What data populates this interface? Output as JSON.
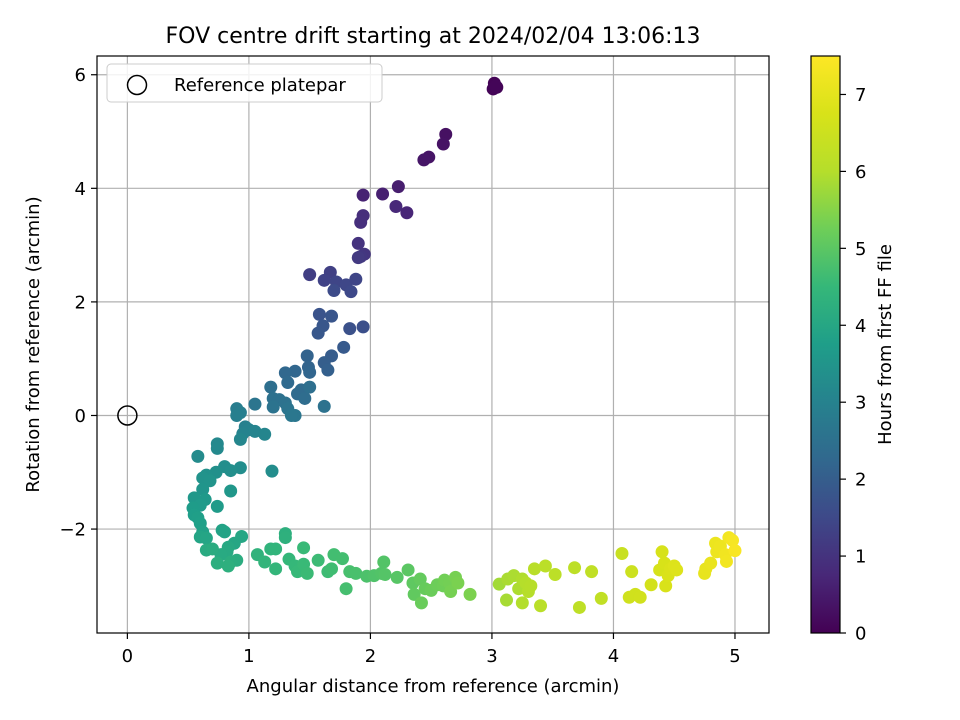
{
  "chart_data": {
    "type": "scatter",
    "title": "FOV centre drift starting at 2024/02/04 13:06:13",
    "xlabel": "Angular distance from reference (arcmin)",
    "ylabel": "Rotation from reference (arcmin)",
    "xlim": [
      -0.25,
      5.28
    ],
    "ylim": [
      -3.83,
      6.33
    ],
    "xticks": [
      0,
      1,
      2,
      3,
      4,
      5
    ],
    "yticks": [
      -2,
      0,
      2,
      4,
      6
    ],
    "ytick_labels": [
      "−2",
      "0",
      "2",
      "4",
      "6"
    ],
    "grid": true,
    "legend": {
      "position": "top-left",
      "entries": [
        "Reference platepar"
      ]
    },
    "reference_point": {
      "x": 0,
      "y": 0,
      "label": "Reference platepar"
    },
    "colorbar": {
      "label": "Hours from first FF file",
      "colormap": "viridis",
      "range": [
        0,
        7.5
      ],
      "ticks": [
        0,
        1,
        2,
        3,
        4,
        5,
        6,
        7
      ]
    },
    "series": [
      {
        "points": [
          [
            3.02,
            5.85,
            0.05
          ],
          [
            3.04,
            5.78,
            0.07
          ],
          [
            3.01,
            5.75,
            0.06
          ],
          [
            3.03,
            5.8,
            0.08
          ],
          [
            2.62,
            4.95,
            0.3
          ],
          [
            2.6,
            4.78,
            0.33
          ],
          [
            2.48,
            4.55,
            0.37
          ],
          [
            2.44,
            4.5,
            0.4
          ],
          [
            2.23,
            4.03,
            0.55
          ],
          [
            2.1,
            3.9,
            0.6
          ],
          [
            1.94,
            3.88,
            0.65
          ],
          [
            2.3,
            3.57,
            0.72
          ],
          [
            2.21,
            3.68,
            0.78
          ],
          [
            1.94,
            3.52,
            0.88
          ],
          [
            1.92,
            3.4,
            0.92
          ],
          [
            1.9,
            3.03,
            1.0
          ],
          [
            1.95,
            2.84,
            1.05
          ],
          [
            1.92,
            2.8,
            1.1
          ],
          [
            1.9,
            2.78,
            1.15
          ],
          [
            1.5,
            2.48,
            1.25
          ],
          [
            1.67,
            2.52,
            1.3
          ],
          [
            1.62,
            2.38,
            1.35
          ],
          [
            1.72,
            2.35,
            1.4
          ],
          [
            1.8,
            2.3,
            1.45
          ],
          [
            1.88,
            2.4,
            1.4
          ],
          [
            1.84,
            2.18,
            1.5
          ],
          [
            1.7,
            2.2,
            1.55
          ],
          [
            1.94,
            1.56,
            1.65
          ],
          [
            1.83,
            1.53,
            1.7
          ],
          [
            1.58,
            1.78,
            1.75
          ],
          [
            1.68,
            1.75,
            1.78
          ],
          [
            1.61,
            1.58,
            1.82
          ],
          [
            1.57,
            1.45,
            1.85
          ],
          [
            1.78,
            1.2,
            1.9
          ],
          [
            1.68,
            1.05,
            1.95
          ],
          [
            1.62,
            0.93,
            2.0
          ],
          [
            1.65,
            0.8,
            2.05
          ],
          [
            1.48,
            1.05,
            2.12
          ],
          [
            1.49,
            0.85,
            2.15
          ],
          [
            1.5,
            0.76,
            2.2
          ],
          [
            1.38,
            0.78,
            2.22
          ],
          [
            1.3,
            0.75,
            2.25
          ],
          [
            1.32,
            0.58,
            2.3
          ],
          [
            1.43,
            0.45,
            2.35
          ],
          [
            1.4,
            0.38,
            2.35
          ],
          [
            1.46,
            0.3,
            2.4
          ],
          [
            1.5,
            0.5,
            2.45
          ],
          [
            1.18,
            0.5,
            2.45
          ],
          [
            1.2,
            0.3,
            2.5
          ],
          [
            1.25,
            0.28,
            2.52
          ],
          [
            1.3,
            0.22,
            2.55
          ],
          [
            1.2,
            0.15,
            2.58
          ],
          [
            1.32,
            0.12,
            2.6
          ],
          [
            1.05,
            0.2,
            2.62
          ],
          [
            1.38,
            0.0,
            2.65
          ],
          [
            1.35,
            0.0,
            2.68
          ],
          [
            1.62,
            0.16,
            2.55
          ],
          [
            0.9,
            0.12,
            2.85
          ],
          [
            0.93,
            0.05,
            2.88
          ],
          [
            0.9,
            0.0,
            2.92
          ],
          [
            0.97,
            -0.2,
            2.95
          ],
          [
            1.0,
            -0.25,
            3.0
          ],
          [
            0.95,
            -0.32,
            3.02
          ],
          [
            1.05,
            -0.28,
            3.05
          ],
          [
            1.13,
            -0.33,
            3.08
          ],
          [
            0.93,
            -0.42,
            3.1
          ],
          [
            0.74,
            -0.5,
            3.15
          ],
          [
            0.74,
            -0.58,
            3.18
          ],
          [
            0.58,
            -0.72,
            3.25
          ],
          [
            0.93,
            -0.92,
            3.3
          ],
          [
            0.8,
            -0.9,
            3.33
          ],
          [
            0.85,
            -0.97,
            3.36
          ],
          [
            0.73,
            -1.0,
            3.38
          ],
          [
            0.65,
            -1.05,
            3.4
          ],
          [
            0.62,
            -1.1,
            3.45
          ],
          [
            0.68,
            -1.15,
            3.48
          ],
          [
            1.19,
            -0.98,
            3.3
          ],
          [
            0.62,
            -1.3,
            3.5
          ],
          [
            0.85,
            -1.33,
            3.55
          ],
          [
            0.55,
            -1.45,
            3.6
          ],
          [
            0.64,
            -1.48,
            3.62
          ],
          [
            0.6,
            -1.58,
            3.66
          ],
          [
            0.74,
            -1.6,
            3.68
          ],
          [
            0.54,
            -1.63,
            3.7
          ],
          [
            0.55,
            -1.75,
            3.74
          ],
          [
            0.58,
            -1.8,
            3.78
          ],
          [
            0.6,
            -1.9,
            3.8
          ],
          [
            0.62,
            -2.05,
            3.85
          ],
          [
            0.78,
            -2.02,
            3.88
          ],
          [
            0.8,
            -2.05,
            3.9
          ],
          [
            0.6,
            -2.14,
            3.93
          ],
          [
            0.65,
            -2.16,
            3.95
          ],
          [
            0.88,
            -2.25,
            3.98
          ],
          [
            0.94,
            -2.13,
            4.0
          ],
          [
            0.83,
            -2.32,
            4.05
          ],
          [
            0.82,
            -2.4,
            4.08
          ],
          [
            0.77,
            -2.45,
            4.1
          ],
          [
            0.65,
            -2.37,
            4.12
          ],
          [
            0.7,
            -2.35,
            4.15
          ],
          [
            0.9,
            -2.55,
            4.18
          ],
          [
            0.85,
            -2.58,
            4.2
          ],
          [
            0.74,
            -2.6,
            4.22
          ],
          [
            0.83,
            -2.65,
            4.25
          ],
          [
            1.3,
            -2.08,
            4.25
          ],
          [
            1.3,
            -2.15,
            4.3
          ],
          [
            1.07,
            -2.45,
            4.35
          ],
          [
            1.18,
            -2.35,
            4.38
          ],
          [
            1.22,
            -2.35,
            4.4
          ],
          [
            1.13,
            -2.58,
            4.42
          ],
          [
            1.22,
            -2.7,
            4.45
          ],
          [
            1.33,
            -2.53,
            4.48
          ],
          [
            1.38,
            -2.65,
            4.5
          ],
          [
            1.4,
            -2.75,
            4.52
          ],
          [
            1.45,
            -2.62,
            4.55
          ],
          [
            1.45,
            -2.33,
            4.55
          ],
          [
            1.48,
            -2.78,
            4.58
          ],
          [
            1.57,
            -2.55,
            4.6
          ],
          [
            1.65,
            -2.75,
            4.62
          ],
          [
            1.68,
            -2.7,
            4.65
          ],
          [
            1.7,
            -2.45,
            4.68
          ],
          [
            1.77,
            -2.52,
            4.7
          ],
          [
            1.8,
            -3.05,
            4.72
          ],
          [
            1.83,
            -2.75,
            4.75
          ],
          [
            1.88,
            -2.78,
            4.78
          ],
          [
            1.97,
            -2.83,
            4.82
          ],
          [
            2.03,
            -2.82,
            4.85
          ],
          [
            2.09,
            -2.78,
            4.88
          ],
          [
            2.11,
            -2.58,
            4.9
          ],
          [
            2.12,
            -2.8,
            4.92
          ],
          [
            2.22,
            -2.85,
            4.95
          ],
          [
            2.31,
            -2.72,
            5.0
          ],
          [
            2.35,
            -2.95,
            5.05
          ],
          [
            2.36,
            -3.15,
            5.08
          ],
          [
            2.41,
            -2.88,
            5.12
          ],
          [
            2.45,
            -3.05,
            5.15
          ],
          [
            2.42,
            -3.3,
            5.18
          ],
          [
            2.5,
            -3.08,
            5.2
          ],
          [
            2.55,
            -2.98,
            5.22
          ],
          [
            2.6,
            -3.0,
            5.25
          ],
          [
            2.61,
            -2.9,
            5.28
          ],
          [
            2.65,
            -2.95,
            5.3
          ],
          [
            2.66,
            -3.1,
            5.33
          ],
          [
            2.7,
            -2.85,
            5.35
          ],
          [
            2.72,
            -2.95,
            5.38
          ],
          [
            2.82,
            -3.15,
            5.4
          ],
          [
            3.06,
            -2.97,
            5.8
          ],
          [
            3.12,
            -3.25,
            5.85
          ],
          [
            3.13,
            -2.88,
            5.88
          ],
          [
            3.18,
            -2.82,
            5.9
          ],
          [
            3.22,
            -3.05,
            5.92
          ],
          [
            3.25,
            -2.88,
            5.95
          ],
          [
            3.25,
            -3.3,
            5.98
          ],
          [
            3.28,
            -2.95,
            6.0
          ],
          [
            3.3,
            -3.1,
            6.02
          ],
          [
            3.32,
            -3.0,
            6.05
          ],
          [
            3.35,
            -2.7,
            6.08
          ],
          [
            3.4,
            -3.35,
            6.1
          ],
          [
            3.44,
            -2.65,
            6.12
          ],
          [
            3.52,
            -2.8,
            6.15
          ],
          [
            3.68,
            -2.68,
            6.18
          ],
          [
            3.72,
            -3.38,
            6.2
          ],
          [
            3.82,
            -2.75,
            6.23
          ],
          [
            3.9,
            -3.22,
            6.25
          ],
          [
            4.07,
            -2.43,
            6.4
          ],
          [
            4.15,
            -2.75,
            6.5
          ],
          [
            4.13,
            -3.2,
            6.55
          ],
          [
            4.18,
            -3.15,
            6.58
          ],
          [
            4.22,
            -3.2,
            6.6
          ],
          [
            4.31,
            -2.98,
            6.65
          ],
          [
            4.38,
            -2.72,
            6.7
          ],
          [
            4.4,
            -2.4,
            6.72
          ],
          [
            4.42,
            -2.6,
            6.75
          ],
          [
            4.43,
            -3.0,
            6.78
          ],
          [
            4.45,
            -2.82,
            6.8
          ],
          [
            4.47,
            -2.7,
            6.82
          ],
          [
            4.5,
            -2.65,
            6.85
          ],
          [
            4.52,
            -2.72,
            6.88
          ],
          [
            4.75,
            -2.78,
            7.05
          ],
          [
            4.76,
            -2.7,
            7.08
          ],
          [
            4.8,
            -2.6,
            7.12
          ],
          [
            4.84,
            -2.25,
            7.15
          ],
          [
            4.85,
            -2.4,
            7.18
          ],
          [
            4.88,
            -2.3,
            7.2
          ],
          [
            4.92,
            -2.45,
            7.25
          ],
          [
            4.93,
            -2.57,
            7.28
          ],
          [
            4.95,
            -2.15,
            7.3
          ],
          [
            4.98,
            -2.2,
            7.35
          ],
          [
            5.0,
            -2.38,
            7.4
          ]
        ]
      }
    ]
  }
}
